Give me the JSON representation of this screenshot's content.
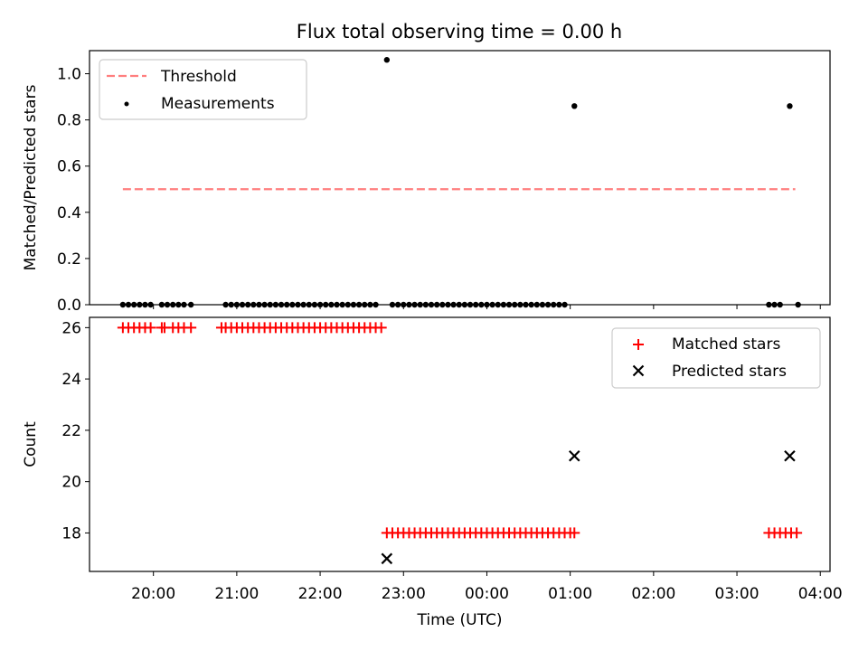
{
  "chart_data": [
    {
      "type": "scatter",
      "title": "Flux total observing time = 0.00 h",
      "xlabel": "",
      "ylabel": "Matched/Predicted stars",
      "xlim": [
        "19:14",
        "04:07"
      ],
      "ylim": [
        0.0,
        1.1
      ],
      "yticks": [
        0.0,
        0.2,
        0.4,
        0.6,
        0.8,
        1.0
      ],
      "ytick_labels": [
        "0.0",
        "0.2",
        "0.4",
        "0.6",
        "0.8",
        "1.0"
      ],
      "legend": {
        "placement": "top-left",
        "entries": [
          "Threshold",
          "Measurements"
        ]
      },
      "threshold": {
        "name": "Threshold",
        "value": 0.5,
        "x_range": [
          "19:38",
          "03:42"
        ],
        "color": "#ff7f7f"
      },
      "series": [
        {
          "name": "Measurements",
          "marker": "dot",
          "color": "#000000",
          "points": [
            [
              "19:38",
              0.0
            ],
            [
              "19:42",
              0.0
            ],
            [
              "19:46",
              0.0
            ],
            [
              "19:50",
              0.0
            ],
            [
              "19:54",
              0.0
            ],
            [
              "19:58",
              0.0
            ],
            [
              "20:06",
              0.0
            ],
            [
              "20:10",
              0.0
            ],
            [
              "20:14",
              0.0
            ],
            [
              "20:18",
              0.0
            ],
            [
              "20:22",
              0.0
            ],
            [
              "20:27",
              0.0
            ],
            [
              "20:52",
              0.0
            ],
            [
              "20:56",
              0.0
            ],
            [
              "21:00",
              0.0
            ],
            [
              "21:04",
              0.0
            ],
            [
              "21:08",
              0.0
            ],
            [
              "21:12",
              0.0
            ],
            [
              "21:16",
              0.0
            ],
            [
              "21:20",
              0.0
            ],
            [
              "21:24",
              0.0
            ],
            [
              "21:28",
              0.0
            ],
            [
              "21:32",
              0.0
            ],
            [
              "21:36",
              0.0
            ],
            [
              "21:40",
              0.0
            ],
            [
              "21:44",
              0.0
            ],
            [
              "21:48",
              0.0
            ],
            [
              "21:52",
              0.0
            ],
            [
              "21:56",
              0.0
            ],
            [
              "22:00",
              0.0
            ],
            [
              "22:04",
              0.0
            ],
            [
              "22:08",
              0.0
            ],
            [
              "22:12",
              0.0
            ],
            [
              "22:16",
              0.0
            ],
            [
              "22:20",
              0.0
            ],
            [
              "22:24",
              0.0
            ],
            [
              "22:28",
              0.0
            ],
            [
              "22:32",
              0.0
            ],
            [
              "22:36",
              0.0
            ],
            [
              "22:40",
              0.0
            ],
            [
              "22:48",
              1.06
            ],
            [
              "22:52",
              0.0
            ],
            [
              "22:56",
              0.0
            ],
            [
              "23:00",
              0.0
            ],
            [
              "23:04",
              0.0
            ],
            [
              "23:08",
              0.0
            ],
            [
              "23:12",
              0.0
            ],
            [
              "23:16",
              0.0
            ],
            [
              "23:20",
              0.0
            ],
            [
              "23:24",
              0.0
            ],
            [
              "23:28",
              0.0
            ],
            [
              "23:32",
              0.0
            ],
            [
              "23:36",
              0.0
            ],
            [
              "23:40",
              0.0
            ],
            [
              "23:44",
              0.0
            ],
            [
              "23:48",
              0.0
            ],
            [
              "23:52",
              0.0
            ],
            [
              "23:56",
              0.0
            ],
            [
              "00:00",
              0.0
            ],
            [
              "00:04",
              0.0
            ],
            [
              "00:08",
              0.0
            ],
            [
              "00:12",
              0.0
            ],
            [
              "00:16",
              0.0
            ],
            [
              "00:20",
              0.0
            ],
            [
              "00:24",
              0.0
            ],
            [
              "00:28",
              0.0
            ],
            [
              "00:32",
              0.0
            ],
            [
              "00:36",
              0.0
            ],
            [
              "00:40",
              0.0
            ],
            [
              "00:44",
              0.0
            ],
            [
              "00:48",
              0.0
            ],
            [
              "00:52",
              0.0
            ],
            [
              "00:56",
              0.0
            ],
            [
              "01:03",
              0.86
            ],
            [
              "03:23",
              0.0
            ],
            [
              "03:27",
              0.0
            ],
            [
              "03:31",
              0.0
            ],
            [
              "03:38",
              0.86
            ],
            [
              "03:44",
              0.0
            ]
          ]
        }
      ]
    },
    {
      "type": "scatter",
      "title": "",
      "xlabel": "Time (UTC)",
      "ylabel": "Count",
      "xlim": [
        "19:14",
        "04:07"
      ],
      "ylim": [
        16.5,
        26.4
      ],
      "yticks": [
        18,
        20,
        22,
        24,
        26
      ],
      "ytick_labels": [
        "18",
        "20",
        "22",
        "24",
        "26"
      ],
      "xticks": [
        "20:00",
        "21:00",
        "22:00",
        "23:00",
        "00:00",
        "01:00",
        "02:00",
        "03:00",
        "04:00"
      ],
      "xtick_labels": [
        "20:00",
        "21:00",
        "22:00",
        "23:00",
        "00:00",
        "01:00",
        "02:00",
        "03:00",
        "04:00"
      ],
      "legend": {
        "placement": "top-right",
        "entries": [
          "Matched stars",
          "Predicted stars"
        ]
      },
      "series": [
        {
          "name": "Matched stars",
          "marker": "plus",
          "color": "#ff0000",
          "points": [
            [
              "19:38",
              26
            ],
            [
              "19:42",
              26
            ],
            [
              "19:46",
              26
            ],
            [
              "19:50",
              26
            ],
            [
              "19:54",
              26
            ],
            [
              "19:58",
              26
            ],
            [
              "20:06",
              26
            ],
            [
              "20:08",
              26
            ],
            [
              "20:14",
              26
            ],
            [
              "20:18",
              26
            ],
            [
              "20:22",
              26
            ],
            [
              "20:27",
              26
            ],
            [
              "20:49",
              26
            ],
            [
              "20:52",
              26
            ],
            [
              "20:56",
              26
            ],
            [
              "21:00",
              26
            ],
            [
              "21:04",
              26
            ],
            [
              "21:08",
              26
            ],
            [
              "21:12",
              26
            ],
            [
              "21:16",
              26
            ],
            [
              "21:20",
              26
            ],
            [
              "21:24",
              26
            ],
            [
              "21:28",
              26
            ],
            [
              "21:32",
              26
            ],
            [
              "21:36",
              26
            ],
            [
              "21:40",
              26
            ],
            [
              "21:44",
              26
            ],
            [
              "21:48",
              26
            ],
            [
              "21:52",
              26
            ],
            [
              "21:56",
              26
            ],
            [
              "22:00",
              26
            ],
            [
              "22:04",
              26
            ],
            [
              "22:08",
              26
            ],
            [
              "22:12",
              26
            ],
            [
              "22:16",
              26
            ],
            [
              "22:20",
              26
            ],
            [
              "22:24",
              26
            ],
            [
              "22:28",
              26
            ],
            [
              "22:32",
              26
            ],
            [
              "22:36",
              26
            ],
            [
              "22:40",
              26
            ],
            [
              "22:44",
              26
            ],
            [
              "22:48",
              18
            ],
            [
              "22:52",
              18
            ],
            [
              "22:56",
              18
            ],
            [
              "23:00",
              18
            ],
            [
              "23:04",
              18
            ],
            [
              "23:08",
              18
            ],
            [
              "23:12",
              18
            ],
            [
              "23:16",
              18
            ],
            [
              "23:20",
              18
            ],
            [
              "23:24",
              18
            ],
            [
              "23:28",
              18
            ],
            [
              "23:32",
              18
            ],
            [
              "23:36",
              18
            ],
            [
              "23:40",
              18
            ],
            [
              "23:44",
              18
            ],
            [
              "23:48",
              18
            ],
            [
              "23:52",
              18
            ],
            [
              "23:56",
              18
            ],
            [
              "00:00",
              18
            ],
            [
              "00:04",
              18
            ],
            [
              "00:08",
              18
            ],
            [
              "00:12",
              18
            ],
            [
              "00:16",
              18
            ],
            [
              "00:20",
              18
            ],
            [
              "00:24",
              18
            ],
            [
              "00:28",
              18
            ],
            [
              "00:32",
              18
            ],
            [
              "00:36",
              18
            ],
            [
              "00:40",
              18
            ],
            [
              "00:44",
              18
            ],
            [
              "00:48",
              18
            ],
            [
              "00:52",
              18
            ],
            [
              "00:56",
              18
            ],
            [
              "01:00",
              18
            ],
            [
              "01:03",
              18
            ],
            [
              "03:23",
              18
            ],
            [
              "03:27",
              18
            ],
            [
              "03:31",
              18
            ],
            [
              "03:35",
              18
            ],
            [
              "03:39",
              18
            ],
            [
              "03:43",
              18
            ]
          ]
        },
        {
          "name": "Predicted stars",
          "marker": "x",
          "color": "#000000",
          "points": [
            [
              "22:48",
              17
            ],
            [
              "01:03",
              21
            ],
            [
              "03:38",
              21
            ]
          ]
        }
      ]
    }
  ]
}
